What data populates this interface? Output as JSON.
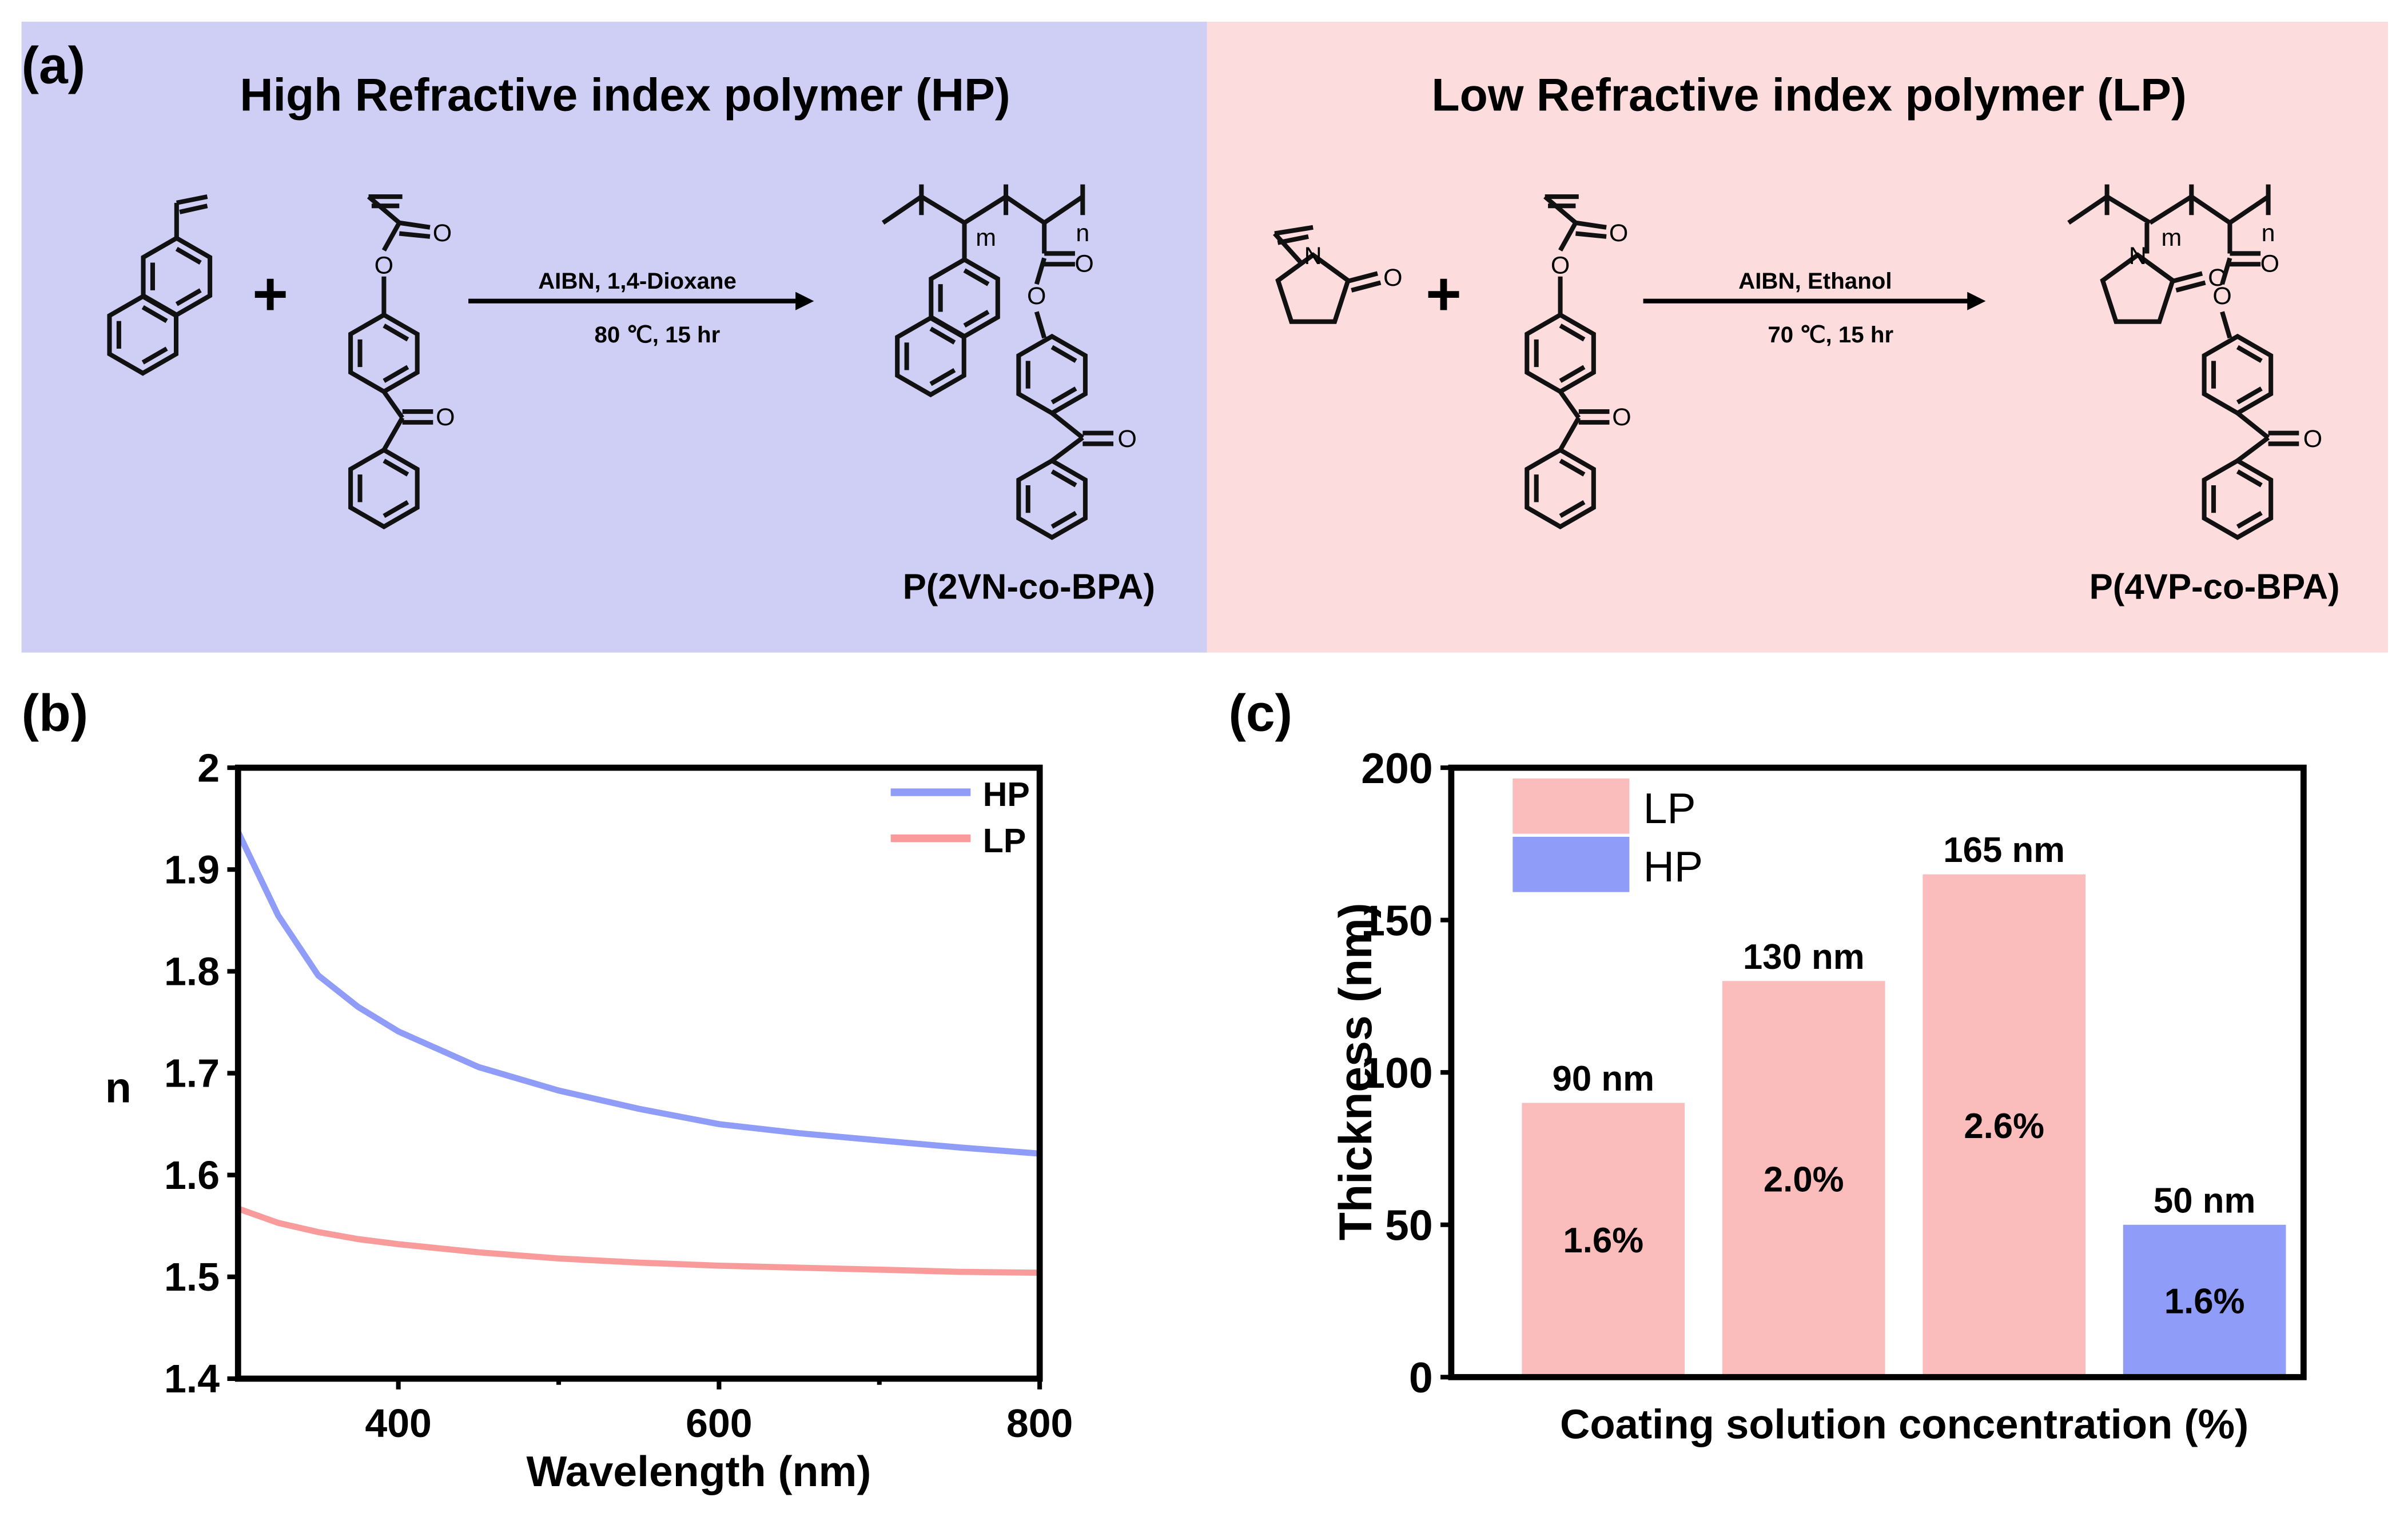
{
  "panel_a": {
    "label": "(a)",
    "hp": {
      "title": "High Refractive index polymer (HP)",
      "plus": "+",
      "conditions_top": "AIBN, 1,4-Dioxane",
      "conditions_bottom": "80 ℃, 15 hr",
      "product": "P(2VN-co-BPA)",
      "background": "#cfcff5"
    },
    "lp": {
      "title": "Low Refractive index polymer (LP)",
      "plus": "+",
      "conditions_top": "AIBN, Ethanol",
      "conditions_bottom": "70 ℃, 15 hr",
      "product": "P(4VP-co-BPA)",
      "background": "#fcdcdc"
    },
    "atoms": {
      "O": "O",
      "N": "N",
      "m": "m",
      "n": "n"
    }
  },
  "chart_data": [
    {
      "panel_label": "(b)",
      "type": "line",
      "title": "",
      "xlabel": "Wavelength (nm)",
      "ylabel": "n",
      "xlim": [
        300,
        800
      ],
      "ylim": [
        1.4,
        2.0
      ],
      "xticks": [
        "400",
        "600",
        "800"
      ],
      "xtick_values": [
        400,
        600,
        800
      ],
      "yticks": [
        "1.4",
        "1.5",
        "1.6",
        "1.7",
        "1.8",
        "1.9",
        "2"
      ],
      "ytick_values": [
        1.4,
        1.5,
        1.6,
        1.7,
        1.8,
        1.9,
        2.0
      ],
      "grid": false,
      "legend_position": "top-right",
      "x": [
        300,
        325,
        350,
        375,
        400,
        450,
        500,
        550,
        600,
        650,
        700,
        750,
        800
      ],
      "series": [
        {
          "name": "HP",
          "color": "#8f9cf8",
          "values": [
            1.937,
            1.855,
            1.796,
            1.765,
            1.741,
            1.706,
            1.683,
            1.665,
            1.65,
            1.641,
            1.634,
            1.627,
            1.621
          ]
        },
        {
          "name": "LP",
          "color": "#f99b9b",
          "values": [
            1.567,
            1.553,
            1.544,
            1.537,
            1.532,
            1.524,
            1.518,
            1.514,
            1.511,
            1.509,
            1.507,
            1.505,
            1.504
          ]
        }
      ]
    },
    {
      "panel_label": "(c)",
      "type": "bar",
      "title": "",
      "xlabel": "Coating solution concentration (%)",
      "ylabel": "Thickness (nm)",
      "ylim": [
        0,
        200
      ],
      "yticks": [
        "0",
        "50",
        "100",
        "150",
        "200"
      ],
      "ytick_values": [
        0,
        50,
        100,
        150,
        200
      ],
      "grid": false,
      "legend_position": "top-left",
      "legend": [
        {
          "name": "LP",
          "color": "#fbbcbc"
        },
        {
          "name": "HP",
          "color": "#8f9cf8"
        }
      ],
      "bars": [
        {
          "series": "LP",
          "value": 90,
          "value_label": "90 nm",
          "inner_label": "1.6%",
          "color": "#fbbcbc"
        },
        {
          "series": "LP",
          "value": 130,
          "value_label": "130 nm",
          "inner_label": "2.0%",
          "color": "#fbbcbc"
        },
        {
          "series": "LP",
          "value": 165,
          "value_label": "165 nm",
          "inner_label": "2.6%",
          "color": "#fbbcbc"
        },
        {
          "series": "HP",
          "value": 50,
          "value_label": "50 nm",
          "inner_label": "1.6%",
          "color": "#8f9cf8"
        }
      ]
    }
  ]
}
